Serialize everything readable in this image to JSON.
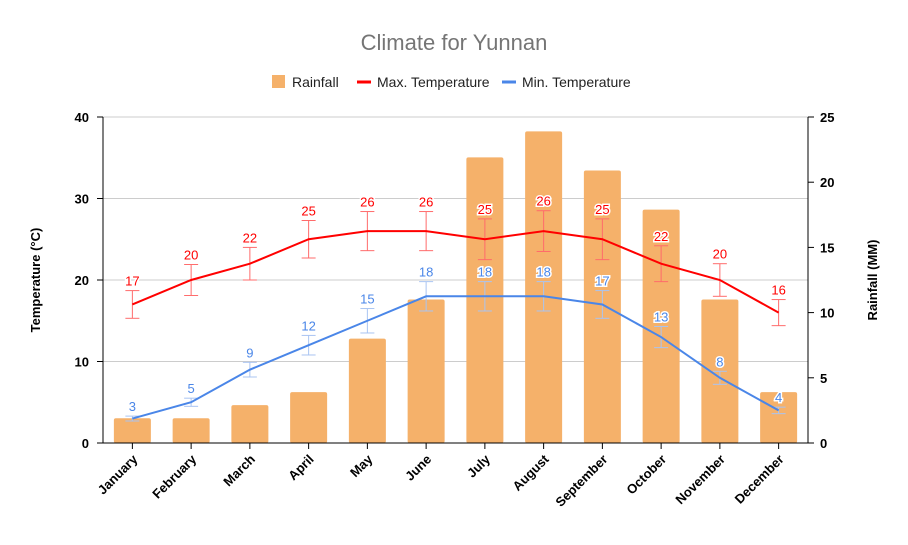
{
  "chart_data": {
    "type": "bar+line",
    "title": "Climate for Yunnan",
    "categories": [
      "January",
      "February",
      "March",
      "April",
      "May",
      "June",
      "July",
      "August",
      "September",
      "October",
      "November",
      "December"
    ],
    "legend": {
      "placement": "top",
      "entries": [
        "Rainfall",
        "Max. Temperature",
        "Min. Temperature"
      ]
    },
    "y_left": {
      "label": "Temperature (°C)",
      "range": [
        0,
        40
      ],
      "ticks": [
        0,
        10,
        20,
        30,
        40
      ]
    },
    "y_right": {
      "label": "Rainfall (MM)",
      "range": [
        0,
        25
      ],
      "ticks": [
        0,
        5,
        10,
        15,
        20,
        25
      ]
    },
    "grid": true,
    "series": [
      {
        "name": "Rainfall",
        "type": "bar",
        "axis": "right",
        "color": "#f5b16a",
        "values": [
          1.9,
          1.9,
          2.9,
          3.9,
          8.0,
          11.0,
          21.9,
          23.9,
          20.9,
          17.9,
          11.0,
          3.9
        ]
      },
      {
        "name": "Max. Temperature",
        "type": "line",
        "axis": "left",
        "color": "#ff0000",
        "values": [
          17,
          20,
          22,
          25,
          26,
          26,
          25,
          26,
          25,
          22,
          20,
          16
        ],
        "labels": [
          "17",
          "20",
          "22",
          "25",
          "26",
          "26",
          "25",
          "26",
          "25",
          "22",
          "20",
          "16"
        ],
        "error": [
          1.7,
          1.9,
          2.0,
          2.3,
          2.4,
          2.4,
          2.5,
          2.5,
          2.5,
          2.2,
          2.0,
          1.6
        ]
      },
      {
        "name": "Min. Temperature",
        "type": "line",
        "axis": "left",
        "color": "#4a86e8",
        "values": [
          3,
          5,
          9,
          12,
          15,
          18,
          18,
          18,
          17,
          13,
          8,
          4
        ],
        "labels": [
          "3",
          "5",
          "9",
          "12",
          "15",
          "18",
          "18",
          "18",
          "17",
          "13",
          "8",
          "4"
        ],
        "error": [
          0.3,
          0.5,
          0.9,
          1.2,
          1.5,
          1.8,
          1.8,
          1.8,
          1.7,
          1.3,
          0.8,
          0.4
        ]
      }
    ]
  }
}
